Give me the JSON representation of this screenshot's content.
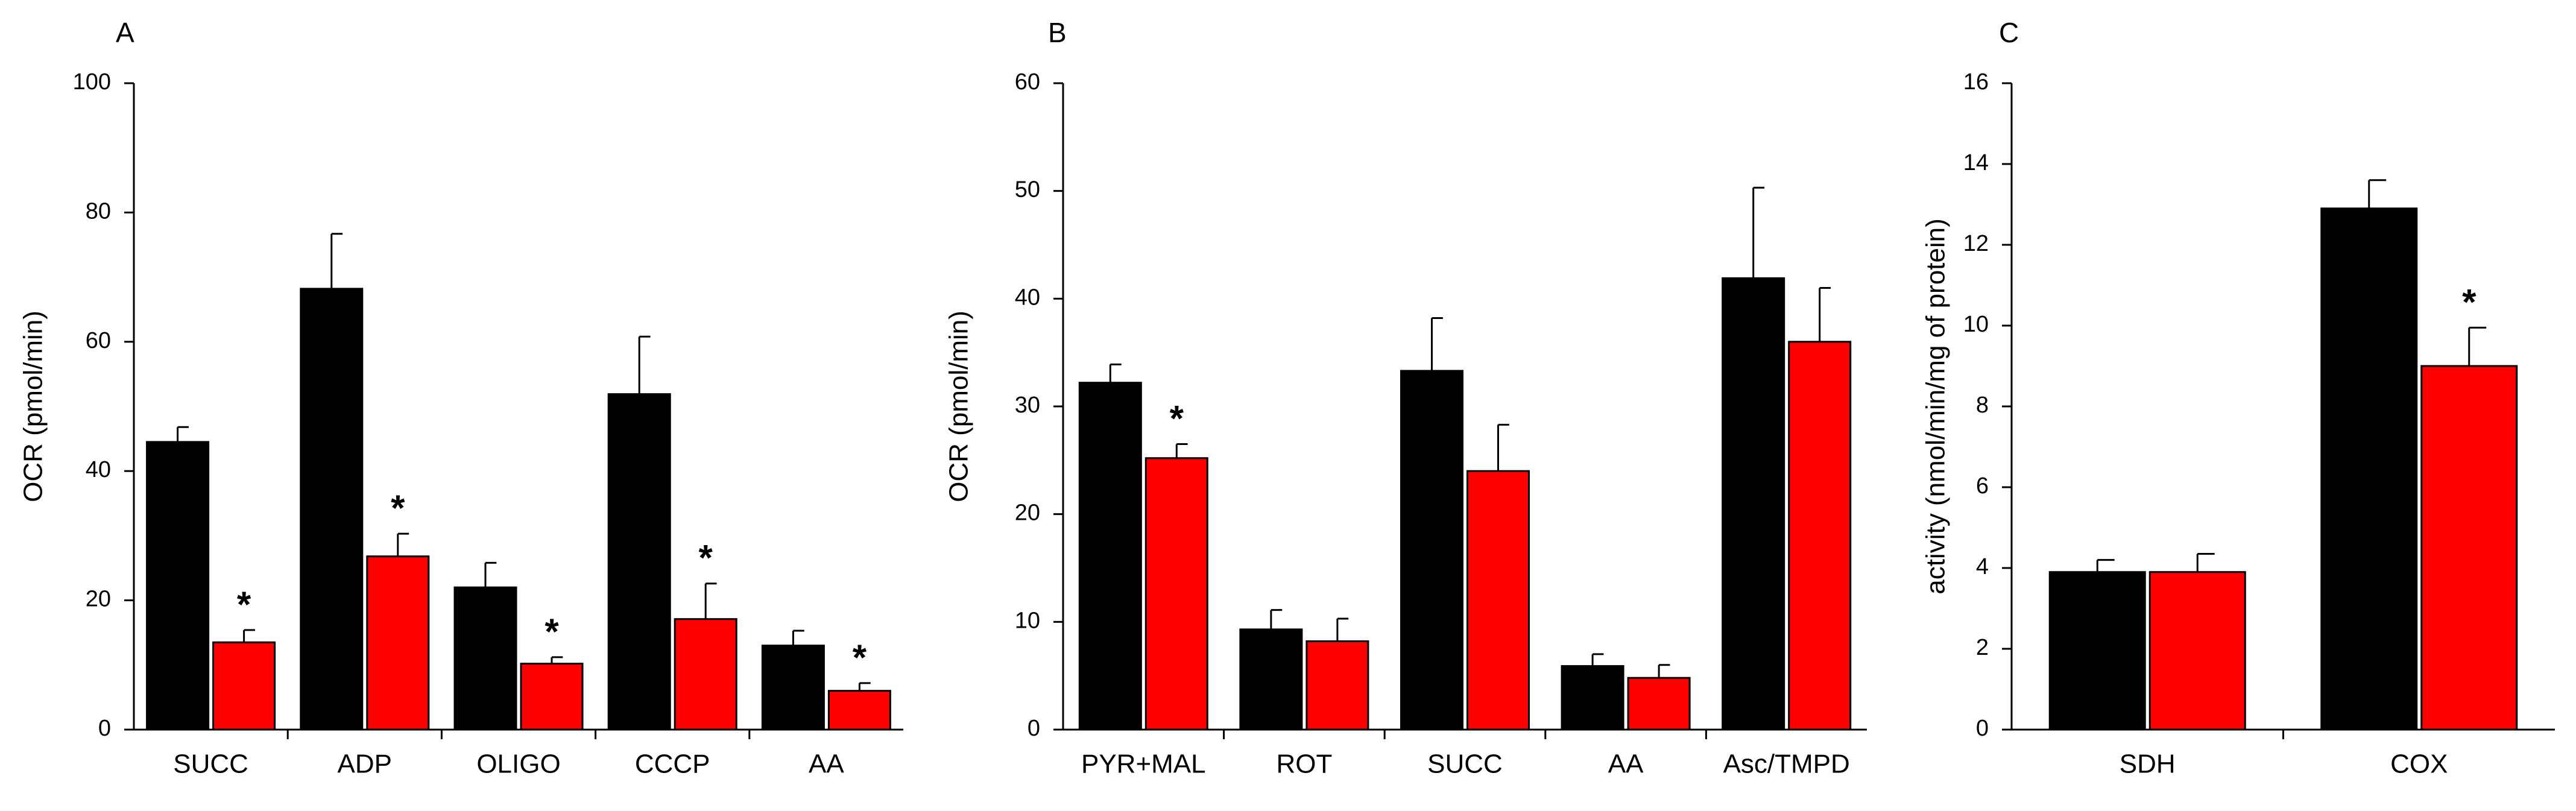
{
  "colors": {
    "series1": "#000000",
    "series2": "#ff0000",
    "axis": "#000000"
  },
  "significance_marker": "*",
  "chart_data": [
    {
      "type": "bar",
      "panel_label": "A",
      "ylabel": "OCR (pmol/min)",
      "xlabel": "",
      "ylim": [
        0,
        100
      ],
      "yticks": [
        0,
        20,
        40,
        60,
        80,
        100
      ],
      "categories": [
        "SUCC",
        "ADP",
        "OLIGO",
        "CCCP",
        "AA"
      ],
      "series": [
        {
          "color": "#000000",
          "values": [
            44.5,
            68.2,
            22.0,
            51.9,
            13.0
          ],
          "errors": [
            2.3,
            8.5,
            3.8,
            8.9,
            2.3
          ],
          "significant": [
            false,
            false,
            false,
            false,
            false
          ]
        },
        {
          "color": "#ff0000",
          "values": [
            13.5,
            26.8,
            10.2,
            17.1,
            6.0
          ],
          "errors": [
            1.9,
            3.5,
            1.0,
            5.5,
            1.2
          ],
          "significant": [
            true,
            true,
            true,
            true,
            true
          ]
        }
      ]
    },
    {
      "type": "bar",
      "panel_label": "B",
      "ylabel": "OCR (pmol/min)",
      "xlabel": "",
      "ylim": [
        0,
        60
      ],
      "yticks": [
        0,
        10,
        20,
        30,
        40,
        50,
        60
      ],
      "categories": [
        "PYR+MAL",
        "ROT",
        "SUCC",
        "AA",
        "Asc/TMPD"
      ],
      "series": [
        {
          "color": "#000000",
          "values": [
            32.2,
            9.3,
            33.3,
            5.9,
            41.9
          ],
          "errors": [
            1.7,
            1.8,
            4.9,
            1.1,
            8.4
          ],
          "significant": [
            false,
            false,
            false,
            false,
            false
          ]
        },
        {
          "color": "#ff0000",
          "values": [
            25.2,
            8.2,
            24.0,
            4.8,
            36.0
          ],
          "errors": [
            1.3,
            2.1,
            4.3,
            1.2,
            5.0
          ],
          "significant": [
            true,
            false,
            false,
            false,
            false
          ]
        }
      ]
    },
    {
      "type": "bar",
      "panel_label": "C",
      "ylabel": "activity (nmol/min/mg of protein)",
      "xlabel": "",
      "ylim": [
        0,
        16
      ],
      "yticks": [
        0,
        2,
        4,
        6,
        8,
        10,
        12,
        14,
        16
      ],
      "categories": [
        "SDH",
        "COX"
      ],
      "series": [
        {
          "color": "#000000",
          "values": [
            3.9,
            12.9
          ],
          "errors": [
            0.3,
            0.7
          ],
          "significant": [
            false,
            false
          ]
        },
        {
          "color": "#ff0000",
          "values": [
            3.9,
            9.0
          ],
          "errors": [
            0.45,
            0.95
          ],
          "significant": [
            false,
            true
          ]
        }
      ]
    }
  ]
}
